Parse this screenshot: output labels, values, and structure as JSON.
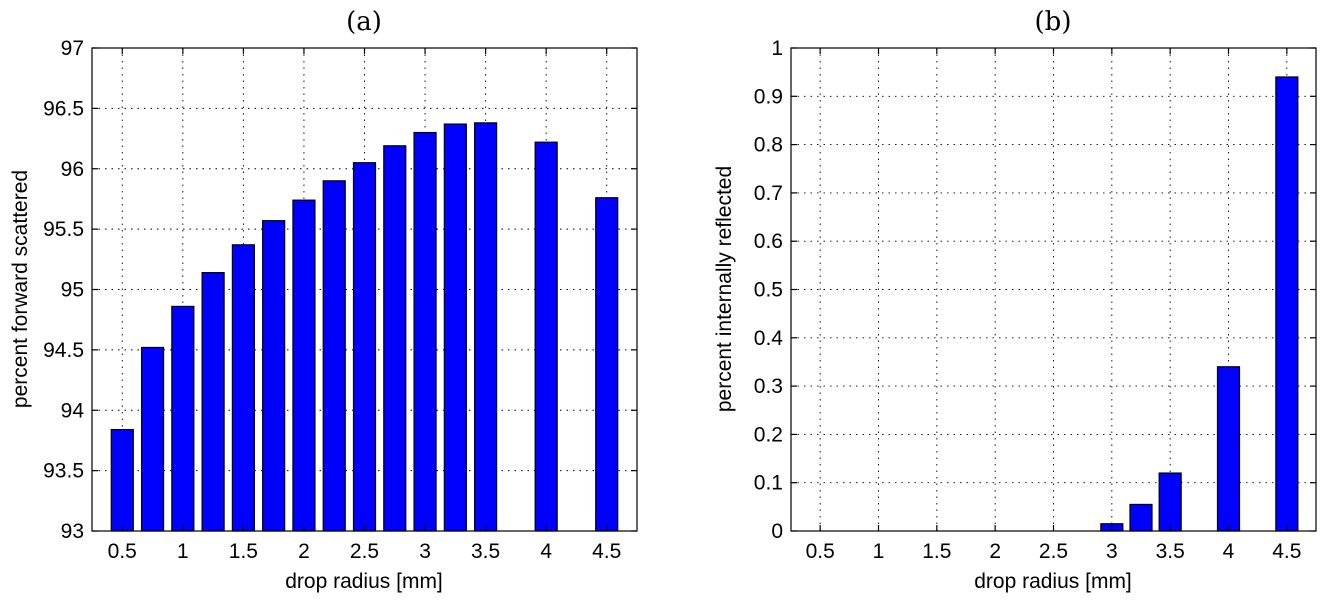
{
  "colors": {
    "bar": "#0000ff",
    "edge": "#000000",
    "background": "#ffffff"
  },
  "chart_data": [
    {
      "id": "a",
      "type": "bar",
      "title": "(a)",
      "xlabel": "drop radius [mm]",
      "ylabel": "percent forward scattered",
      "xlim": [
        0.25,
        4.75
      ],
      "ylim": [
        93,
        97
      ],
      "grid": true,
      "xticks": [
        "0.5",
        "1",
        "1.5",
        "2",
        "2.5",
        "3",
        "3.5",
        "4",
        "4.5"
      ],
      "yticks": [
        "93",
        "93.5",
        "94",
        "94.5",
        "95",
        "95.5",
        "96",
        "96.5",
        "97"
      ],
      "x": [
        0.5,
        0.75,
        1.0,
        1.25,
        1.5,
        1.75,
        2.0,
        2.25,
        2.5,
        2.75,
        3.0,
        3.25,
        3.5,
        4.0,
        4.5
      ],
      "values": [
        93.84,
        94.52,
        94.86,
        95.14,
        95.37,
        95.57,
        95.74,
        95.9,
        96.05,
        96.19,
        96.3,
        96.37,
        96.38,
        96.22,
        95.76
      ]
    },
    {
      "id": "b",
      "type": "bar",
      "title": "(b)",
      "xlabel": "drop radius [mm]",
      "ylabel": "percent internally reflected",
      "xlim": [
        0.25,
        4.75
      ],
      "ylim": [
        0,
        1
      ],
      "grid": true,
      "xticks": [
        "0.5",
        "1",
        "1.5",
        "2",
        "2.5",
        "3",
        "3.5",
        "4",
        "4.5"
      ],
      "yticks": [
        "0",
        "0.1",
        "0.2",
        "0.3",
        "0.4",
        "0.5",
        "0.6",
        "0.7",
        "0.8",
        "0.9",
        "1"
      ],
      "x": [
        0.5,
        0.75,
        1.0,
        1.25,
        1.5,
        1.75,
        2.0,
        2.25,
        2.5,
        2.75,
        3.0,
        3.25,
        3.5,
        4.0,
        4.5
      ],
      "values": [
        0,
        0,
        0,
        0,
        0,
        0,
        0,
        0,
        0,
        0,
        0.015,
        0.055,
        0.12,
        0.34,
        0.94
      ]
    }
  ]
}
